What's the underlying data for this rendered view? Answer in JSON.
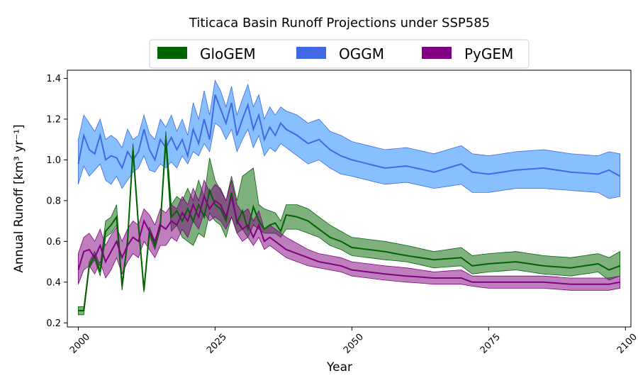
{
  "chart_data": {
    "type": "area",
    "title": "Titicaca Basin Runoff Projections under SSP585",
    "xlabel": "Year",
    "ylabel": "Annual Runoff [km³ yr⁻¹]",
    "xlim": [
      1998,
      2101
    ],
    "ylim": [
      0.18,
      1.44
    ],
    "x_ticks": [
      2000,
      2025,
      2050,
      2075,
      2100
    ],
    "y_ticks": [
      0.2,
      0.4,
      0.6,
      0.8,
      1.0,
      1.2,
      1.4
    ],
    "grid": false,
    "legend_position": "top",
    "series_keypoints_x": [
      2000,
      2001,
      2002,
      2003,
      2004,
      2005,
      2006,
      2007,
      2008,
      2009,
      2010,
      2011,
      2012,
      2013,
      2014,
      2015,
      2016,
      2017,
      2018,
      2019,
      2020,
      2021,
      2022,
      2023,
      2024,
      2025,
      2026,
      2027,
      2028,
      2029,
      2030,
      2031,
      2032,
      2033,
      2034,
      2035,
      2036,
      2037,
      2038,
      2040,
      2042,
      2044,
      2046,
      2048,
      2050,
      2053,
      2056,
      2060,
      2065,
      2070,
      2072,
      2075,
      2080,
      2085,
      2090,
      2095,
      2097,
      2099
    ],
    "series": [
      {
        "name": "GloGEM",
        "color": "#006400",
        "mean": [
          0.26,
          0.26,
          0.48,
          0.53,
          0.45,
          0.65,
          0.68,
          0.72,
          0.38,
          0.6,
          1.05,
          0.68,
          0.36,
          0.65,
          0.58,
          0.68,
          1.1,
          0.72,
          0.75,
          0.7,
          0.76,
          0.7,
          0.78,
          0.72,
          0.85,
          0.78,
          0.76,
          0.7,
          0.84,
          0.69,
          0.75,
          0.66,
          0.77,
          0.7,
          0.66,
          0.68,
          0.69,
          0.65,
          0.73,
          0.72,
          0.7,
          0.66,
          0.62,
          0.6,
          0.57,
          0.56,
          0.55,
          0.53,
          0.51,
          0.52,
          0.48,
          0.49,
          0.5,
          0.48,
          0.47,
          0.49,
          0.46,
          0.48
        ],
        "lower": [
          0.24,
          0.24,
          0.47,
          0.51,
          0.43,
          0.62,
          0.64,
          0.68,
          0.36,
          0.58,
          1.02,
          0.66,
          0.35,
          0.63,
          0.56,
          0.66,
          1.07,
          0.65,
          0.68,
          0.62,
          0.6,
          0.58,
          0.64,
          0.62,
          0.74,
          0.7,
          0.68,
          0.62,
          0.72,
          0.64,
          0.66,
          0.62,
          0.68,
          0.66,
          0.64,
          0.64,
          0.64,
          0.62,
          0.66,
          0.66,
          0.64,
          0.62,
          0.58,
          0.56,
          0.53,
          0.52,
          0.51,
          0.5,
          0.47,
          0.48,
          0.44,
          0.45,
          0.46,
          0.44,
          0.43,
          0.45,
          0.41,
          0.43
        ],
        "upper": [
          0.28,
          0.28,
          0.5,
          0.55,
          0.48,
          0.7,
          0.72,
          0.78,
          0.4,
          0.62,
          1.08,
          0.7,
          0.38,
          0.67,
          0.6,
          0.7,
          1.14,
          0.78,
          0.82,
          0.8,
          0.86,
          0.8,
          0.9,
          0.82,
          1.01,
          0.9,
          0.85,
          0.8,
          0.92,
          0.8,
          0.92,
          0.94,
          0.96,
          0.78,
          0.76,
          0.75,
          0.74,
          0.7,
          0.78,
          0.78,
          0.76,
          0.72,
          0.68,
          0.65,
          0.62,
          0.61,
          0.6,
          0.58,
          0.55,
          0.57,
          0.53,
          0.54,
          0.55,
          0.53,
          0.52,
          0.54,
          0.52,
          0.55
        ]
      },
      {
        "name": "OGGM",
        "color": "#4169E1",
        "fill": "#87BFFF",
        "mean": [
          0.98,
          1.12,
          1.05,
          1.03,
          1.12,
          1.0,
          1.02,
          1.01,
          0.96,
          1.04,
          1.0,
          1.04,
          1.15,
          1.05,
          1.0,
          1.1,
          1.06,
          1.11,
          1.05,
          1.1,
          1.02,
          1.15,
          1.08,
          1.2,
          1.1,
          1.32,
          1.25,
          1.18,
          1.28,
          1.12,
          1.2,
          1.27,
          1.15,
          1.22,
          1.1,
          1.16,
          1.12,
          1.18,
          1.15,
          1.12,
          1.08,
          1.1,
          1.05,
          1.02,
          1.0,
          0.98,
          0.96,
          0.97,
          0.94,
          0.98,
          0.94,
          0.93,
          0.95,
          0.96,
          0.94,
          0.93,
          0.95,
          0.92
        ],
        "lower": [
          0.88,
          0.97,
          0.92,
          0.95,
          0.98,
          0.9,
          0.88,
          0.92,
          0.86,
          0.9,
          0.94,
          0.96,
          1.02,
          0.95,
          0.94,
          0.98,
          0.96,
          0.99,
          0.96,
          1.02,
          0.98,
          1.04,
          1.02,
          1.08,
          1.04,
          1.18,
          1.16,
          1.1,
          1.15,
          1.04,
          1.1,
          1.15,
          1.06,
          1.12,
          1.02,
          1.06,
          1.04,
          1.08,
          1.06,
          1.02,
          0.98,
          1.0,
          0.96,
          0.93,
          0.92,
          0.9,
          0.88,
          0.89,
          0.86,
          0.88,
          0.84,
          0.84,
          0.86,
          0.86,
          0.85,
          0.84,
          0.81,
          0.82
        ],
        "upper": [
          1.1,
          1.22,
          1.18,
          1.14,
          1.2,
          1.1,
          1.12,
          1.1,
          1.06,
          1.15,
          1.1,
          1.12,
          1.22,
          1.13,
          1.1,
          1.2,
          1.16,
          1.22,
          1.14,
          1.2,
          1.12,
          1.28,
          1.2,
          1.34,
          1.22,
          1.39,
          1.34,
          1.26,
          1.36,
          1.22,
          1.3,
          1.37,
          1.26,
          1.32,
          1.2,
          1.26,
          1.22,
          1.26,
          1.24,
          1.22,
          1.18,
          1.2,
          1.14,
          1.12,
          1.09,
          1.07,
          1.05,
          1.06,
          1.03,
          1.07,
          1.03,
          1.02,
          1.04,
          1.05,
          1.03,
          1.02,
          1.04,
          1.03
        ]
      },
      {
        "name": "PyGEM",
        "color": "#800080",
        "mean": [
          0.46,
          0.55,
          0.56,
          0.52,
          0.58,
          0.5,
          0.55,
          0.6,
          0.52,
          0.58,
          0.62,
          0.6,
          0.7,
          0.65,
          0.6,
          0.68,
          0.66,
          0.7,
          0.68,
          0.74,
          0.7,
          0.78,
          0.72,
          0.82,
          0.76,
          0.8,
          0.78,
          0.72,
          0.82,
          0.7,
          0.66,
          0.68,
          0.62,
          0.68,
          0.6,
          0.62,
          0.6,
          0.58,
          0.56,
          0.54,
          0.52,
          0.5,
          0.49,
          0.48,
          0.46,
          0.45,
          0.44,
          0.43,
          0.42,
          0.42,
          0.4,
          0.4,
          0.4,
          0.4,
          0.39,
          0.39,
          0.39,
          0.4
        ],
        "lower": [
          0.39,
          0.46,
          0.48,
          0.44,
          0.5,
          0.42,
          0.46,
          0.52,
          0.44,
          0.5,
          0.54,
          0.52,
          0.6,
          0.56,
          0.52,
          0.58,
          0.58,
          0.62,
          0.6,
          0.66,
          0.62,
          0.7,
          0.66,
          0.74,
          0.7,
          0.72,
          0.7,
          0.66,
          0.72,
          0.64,
          0.6,
          0.62,
          0.58,
          0.62,
          0.56,
          0.58,
          0.56,
          0.54,
          0.52,
          0.5,
          0.48,
          0.47,
          0.46,
          0.45,
          0.43,
          0.42,
          0.41,
          0.4,
          0.39,
          0.39,
          0.38,
          0.37,
          0.37,
          0.37,
          0.36,
          0.36,
          0.36,
          0.37
        ],
        "upper": [
          0.54,
          0.62,
          0.64,
          0.6,
          0.66,
          0.58,
          0.63,
          0.67,
          0.6,
          0.66,
          0.7,
          0.68,
          0.76,
          0.73,
          0.68,
          0.76,
          0.74,
          0.78,
          0.76,
          0.82,
          0.78,
          0.86,
          0.8,
          0.9,
          0.84,
          0.88,
          0.86,
          0.8,
          0.9,
          0.78,
          0.74,
          0.76,
          0.7,
          0.75,
          0.66,
          0.68,
          0.66,
          0.64,
          0.62,
          0.59,
          0.56,
          0.54,
          0.53,
          0.52,
          0.5,
          0.49,
          0.48,
          0.47,
          0.45,
          0.46,
          0.43,
          0.43,
          0.43,
          0.43,
          0.42,
          0.42,
          0.42,
          0.43
        ]
      }
    ]
  }
}
